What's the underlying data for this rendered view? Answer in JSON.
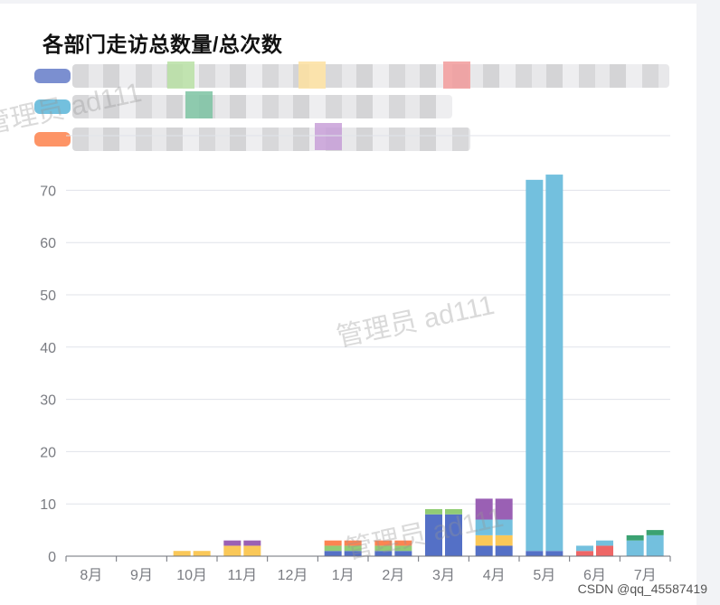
{
  "chart_data": {
    "type": "bar",
    "title": "各部门走访总数量/总次数",
    "categories": [
      "8月",
      "9月",
      "10月",
      "11月",
      "12月",
      "1月",
      "2月",
      "3月",
      "4月",
      "5月",
      "6月",
      "7月"
    ],
    "ylim": [
      0,
      75
    ],
    "yticks": [
      0,
      10,
      20,
      30,
      40,
      50,
      60,
      70
    ],
    "grid": true,
    "legend_position": "top",
    "series": [
      {
        "color": "#5470c6",
        "group": "a",
        "values": [
          0,
          0,
          0,
          0,
          0,
          1,
          1,
          8,
          2,
          1,
          0,
          0
        ]
      },
      {
        "color": "#91cc75",
        "group": "a",
        "values": [
          0,
          0,
          0,
          0,
          0,
          1,
          1,
          1,
          0,
          0,
          0,
          0
        ]
      },
      {
        "color": "#fac858",
        "group": "a",
        "values": [
          0,
          0,
          1,
          2,
          0,
          0,
          0,
          0,
          2,
          0,
          0,
          0
        ]
      },
      {
        "color": "#ee6666",
        "group": "a",
        "values": [
          0,
          0,
          0,
          0,
          0,
          0,
          0,
          0,
          0,
          0,
          1,
          0
        ]
      },
      {
        "color": "#73c0de",
        "group": "a",
        "values": [
          0,
          0,
          0,
          0,
          0,
          0,
          0,
          0,
          3,
          71,
          1,
          3
        ]
      },
      {
        "color": "#3ba272",
        "group": "a",
        "values": [
          0,
          0,
          0,
          0,
          0,
          0,
          0,
          0,
          0,
          0,
          0,
          1
        ]
      },
      {
        "color": "#fc8452",
        "group": "a",
        "values": [
          0,
          0,
          0,
          0,
          0,
          1,
          1,
          0,
          0,
          0,
          0,
          0
        ]
      },
      {
        "color": "#9a60b4",
        "group": "a",
        "values": [
          0,
          0,
          0,
          1,
          0,
          0,
          0,
          0,
          4,
          0,
          0,
          0
        ]
      },
      {
        "color": "#5470c6",
        "group": "b",
        "values": [
          0,
          0,
          0,
          0,
          0,
          1,
          1,
          8,
          2,
          1,
          0,
          0
        ]
      },
      {
        "color": "#91cc75",
        "group": "b",
        "values": [
          0,
          0,
          0,
          0,
          0,
          1,
          1,
          1,
          0,
          0,
          0,
          0
        ]
      },
      {
        "color": "#fac858",
        "group": "b",
        "values": [
          0,
          0,
          1,
          2,
          0,
          0,
          0,
          0,
          2,
          0,
          0,
          0
        ]
      },
      {
        "color": "#ee6666",
        "group": "b",
        "values": [
          0,
          0,
          0,
          0,
          0,
          0,
          0,
          0,
          0,
          0,
          2,
          0
        ]
      },
      {
        "color": "#73c0de",
        "group": "b",
        "values": [
          0,
          0,
          0,
          0,
          0,
          0,
          0,
          0,
          3,
          72,
          1,
          4
        ]
      },
      {
        "color": "#3ba272",
        "group": "b",
        "values": [
          0,
          0,
          0,
          0,
          0,
          0,
          0,
          0,
          0,
          0,
          0,
          1
        ]
      },
      {
        "color": "#fc8452",
        "group": "b",
        "values": [
          0,
          0,
          0,
          0,
          0,
          1,
          1,
          0,
          0,
          0,
          0,
          0
        ]
      },
      {
        "color": "#9a60b4",
        "group": "b",
        "values": [
          0,
          0,
          0,
          1,
          0,
          0,
          0,
          0,
          4,
          0,
          0,
          0
        ]
      }
    ]
  },
  "legend": {
    "swatches": [
      {
        "icon": "legend-swatch-blue",
        "color": "#5470c6"
      },
      {
        "icon": "legend-swatch-lightblue",
        "color": "#73c0de"
      },
      {
        "icon": "legend-swatch-orange",
        "color": "#fc8452"
      }
    ],
    "blurred": true
  },
  "watermark": {
    "text": "管理员 ad111"
  },
  "footer": {
    "credit": "CSDN @qq_45587419"
  }
}
